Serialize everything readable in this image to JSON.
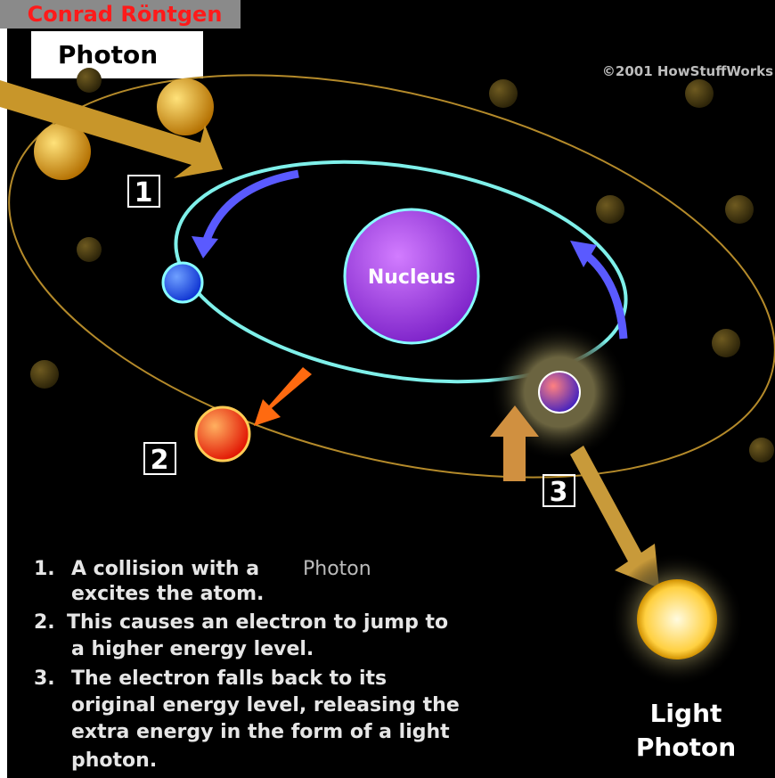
{
  "header": {
    "caption": "Conrad Röntgen",
    "title": "Photon"
  },
  "credit": "©2001 HowStuffWorks",
  "diagram": {
    "nucleus": "Nucleus",
    "steps": [
      "1",
      "2",
      "3"
    ],
    "photon_label": [
      "Light",
      "Photon"
    ]
  },
  "list": [
    {
      "number": "1.",
      "lines": [
        "A collision with a",
        "excites the atom."
      ],
      "inserted": "Photon"
    },
    {
      "number": "2.",
      "lines": [
        "This causes an electron to jump to",
        "a higher energy level."
      ]
    },
    {
      "number": "3.",
      "lines": [
        "The electron falls back to its",
        "original energy level, releasing the",
        "extra energy in the form of a light",
        "photon."
      ]
    }
  ]
}
